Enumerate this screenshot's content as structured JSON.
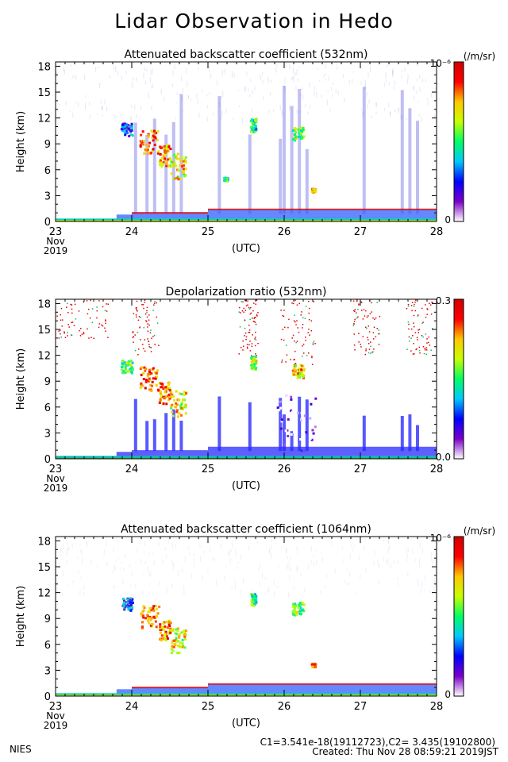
{
  "title": "Lidar Observation in Hedo",
  "footer": {
    "left": "NIES",
    "line1": "C1=3.541e-18(19112723),C2= 3.435(19102800)",
    "line2": "Created: Thu Nov 28 08:59:21 2019JST"
  },
  "colorscale": [
    "#ffffff",
    "#7b00c8",
    "#0000ff",
    "#00c8ff",
    "#00ff64",
    "#c8ff00",
    "#ffc800",
    "#ff0000",
    "#d00000"
  ],
  "chart_data": [
    {
      "type": "heatmap",
      "title": "Attenuated backscatter coefficient (532nm)",
      "ylabel": "Height (km)",
      "xlabel": "(UTC)",
      "x_ticks": [
        "23",
        "24",
        "25",
        "26",
        "27",
        "28"
      ],
      "x_sub": [
        "Nov",
        "2019"
      ],
      "x_range": [
        "2019-11-23",
        "2019-11-28"
      ],
      "y_ticks": [
        "18",
        "15",
        "12",
        "9",
        "6",
        "3",
        "0"
      ],
      "y_range": [
        0,
        18.5
      ],
      "colorbar_unit": "(/m/sr)",
      "colorbar_max": "10⁻⁶",
      "colorbar_min": "0",
      "features": {
        "boundary_layer": {
          "x": [
            23.0,
            23.8,
            24.0,
            25.0,
            26.0,
            27.0,
            28.0
          ],
          "top_km": [
            0.3,
            0.3,
            0.8,
            1.0,
            1.4,
            1.1,
            1.4
          ]
        },
        "cloud_layers": [
          {
            "x_start": 24.1,
            "x_end": 24.35,
            "y_bottom": 8.0,
            "y_top": 10.8,
            "intensity": 0.9
          },
          {
            "x_start": 24.35,
            "x_end": 24.5,
            "y_bottom": 6.5,
            "y_top": 9.0,
            "intensity": 0.85
          },
          {
            "x_start": 24.5,
            "x_end": 24.7,
            "y_bottom": 5.0,
            "y_top": 8.0,
            "intensity": 0.75
          },
          {
            "x_start": 23.85,
            "x_end": 24.0,
            "y_bottom": 10.0,
            "y_top": 11.5,
            "intensity": 0.35
          },
          {
            "x_start": 25.55,
            "x_end": 25.62,
            "y_bottom": 10.5,
            "y_top": 12.0,
            "intensity": 0.55
          },
          {
            "x_start": 26.1,
            "x_end": 26.25,
            "y_bottom": 9.5,
            "y_top": 11.0,
            "intensity": 0.65
          },
          {
            "x_start": 26.35,
            "x_end": 26.4,
            "y_bottom": 3.5,
            "y_top": 3.9,
            "intensity": 0.8
          },
          {
            "x_start": 25.2,
            "x_end": 25.25,
            "y_bottom": 4.8,
            "y_top": 5.2,
            "intensity": 0.6
          }
        ],
        "precip_columns": [
          24.05,
          24.2,
          24.3,
          24.45,
          24.55,
          24.65,
          25.15,
          25.55,
          25.95,
          26.0,
          26.1,
          26.2,
          26.3,
          27.05,
          27.55,
          27.65,
          27.75
        ]
      }
    },
    {
      "type": "heatmap",
      "title": "Depolarization ratio (532nm)",
      "ylabel": "Height (km)",
      "xlabel": "(UTC)",
      "x_ticks": [
        "23",
        "24",
        "25",
        "26",
        "27",
        "28"
      ],
      "x_sub": [
        "Nov",
        "2019"
      ],
      "x_range": [
        "2019-11-23",
        "2019-11-28"
      ],
      "y_ticks": [
        "18",
        "15",
        "12",
        "9",
        "6",
        "3",
        "0"
      ],
      "y_range": [
        0,
        18.5
      ],
      "colorbar_unit": "",
      "colorbar_max": "0.3",
      "colorbar_min": "0.0",
      "features": {
        "boundary_layer": {
          "x": [
            23.0,
            23.8,
            24.0,
            25.0,
            26.0,
            27.0,
            28.0
          ],
          "top_km": [
            0.3,
            0.3,
            0.8,
            1.0,
            1.4,
            1.1,
            1.4
          ]
        },
        "cloud_layers": [
          {
            "x_start": 24.1,
            "x_end": 24.35,
            "y_bottom": 8.0,
            "y_top": 10.8,
            "intensity": 0.9
          },
          {
            "x_start": 24.35,
            "x_end": 24.5,
            "y_bottom": 6.5,
            "y_top": 9.0,
            "intensity": 0.85
          },
          {
            "x_start": 24.5,
            "x_end": 24.7,
            "y_bottom": 5.0,
            "y_top": 8.0,
            "intensity": 0.75
          },
          {
            "x_start": 23.85,
            "x_end": 24.0,
            "y_bottom": 10.0,
            "y_top": 11.5,
            "intensity": 0.6
          },
          {
            "x_start": 25.55,
            "x_end": 25.62,
            "y_bottom": 10.5,
            "y_top": 12.0,
            "intensity": 0.7
          },
          {
            "x_start": 26.1,
            "x_end": 26.25,
            "y_bottom": 9.5,
            "y_top": 11.0,
            "intensity": 0.8
          },
          {
            "x_start": 25.9,
            "x_end": 26.4,
            "y_bottom": 1.0,
            "y_top": 7.5,
            "intensity": 0.1
          }
        ],
        "precip_columns": [
          24.05,
          24.2,
          24.3,
          24.45,
          24.55,
          24.65,
          25.15,
          25.55,
          25.95,
          26.0,
          26.1,
          26.2,
          26.3,
          27.05,
          27.55,
          27.65,
          27.75
        ],
        "noise_regions": [
          {
            "x_start": 23.0,
            "x_end": 23.7,
            "y_bottom": 14.0,
            "y_top": 18.5
          },
          {
            "x_start": 24.0,
            "x_end": 24.35,
            "y_bottom": 12.0,
            "y_top": 18.5
          },
          {
            "x_start": 25.4,
            "x_end": 25.65,
            "y_bottom": 12.0,
            "y_top": 18.5
          },
          {
            "x_start": 25.95,
            "x_end": 26.4,
            "y_bottom": 11.0,
            "y_top": 18.5
          },
          {
            "x_start": 26.9,
            "x_end": 27.25,
            "y_bottom": 12.0,
            "y_top": 18.5
          },
          {
            "x_start": 27.6,
            "x_end": 27.95,
            "y_bottom": 12.0,
            "y_top": 18.5
          }
        ]
      }
    },
    {
      "type": "heatmap",
      "title": "Attenuated backscatter coefficient (1064nm)",
      "ylabel": "Height (km)",
      "xlabel": "(UTC)",
      "x_ticks": [
        "23",
        "24",
        "25",
        "26",
        "27",
        "28"
      ],
      "x_sub": [
        "Nov",
        "2019"
      ],
      "x_range": [
        "2019-11-23",
        "2019-11-28"
      ],
      "y_ticks": [
        "18",
        "15",
        "12",
        "9",
        "6",
        "3",
        "0"
      ],
      "y_range": [
        0,
        18.5
      ],
      "colorbar_unit": "(/m/sr)",
      "colorbar_max": "10⁻⁶",
      "colorbar_min": "0",
      "features": {
        "boundary_layer": {
          "x": [
            23.0,
            23.8,
            24.0,
            25.0,
            26.0,
            27.0,
            28.0
          ],
          "top_km": [
            0.3,
            0.3,
            0.8,
            1.0,
            1.4,
            1.1,
            1.4
          ]
        },
        "cloud_layers": [
          {
            "x_start": 24.1,
            "x_end": 24.35,
            "y_bottom": 8.0,
            "y_top": 10.8,
            "intensity": 0.9
          },
          {
            "x_start": 24.35,
            "x_end": 24.5,
            "y_bottom": 6.5,
            "y_top": 9.0,
            "intensity": 0.85
          },
          {
            "x_start": 24.5,
            "x_end": 24.7,
            "y_bottom": 5.0,
            "y_top": 8.0,
            "intensity": 0.75
          },
          {
            "x_start": 23.85,
            "x_end": 24.0,
            "y_bottom": 10.0,
            "y_top": 11.5,
            "intensity": 0.35
          },
          {
            "x_start": 25.55,
            "x_end": 25.62,
            "y_bottom": 10.5,
            "y_top": 12.0,
            "intensity": 0.55
          },
          {
            "x_start": 26.1,
            "x_end": 26.25,
            "y_bottom": 9.5,
            "y_top": 11.0,
            "intensity": 0.65
          },
          {
            "x_start": 26.35,
            "x_end": 26.4,
            "y_bottom": 3.5,
            "y_top": 3.9,
            "intensity": 0.8
          }
        ],
        "precip_columns": []
      }
    }
  ]
}
